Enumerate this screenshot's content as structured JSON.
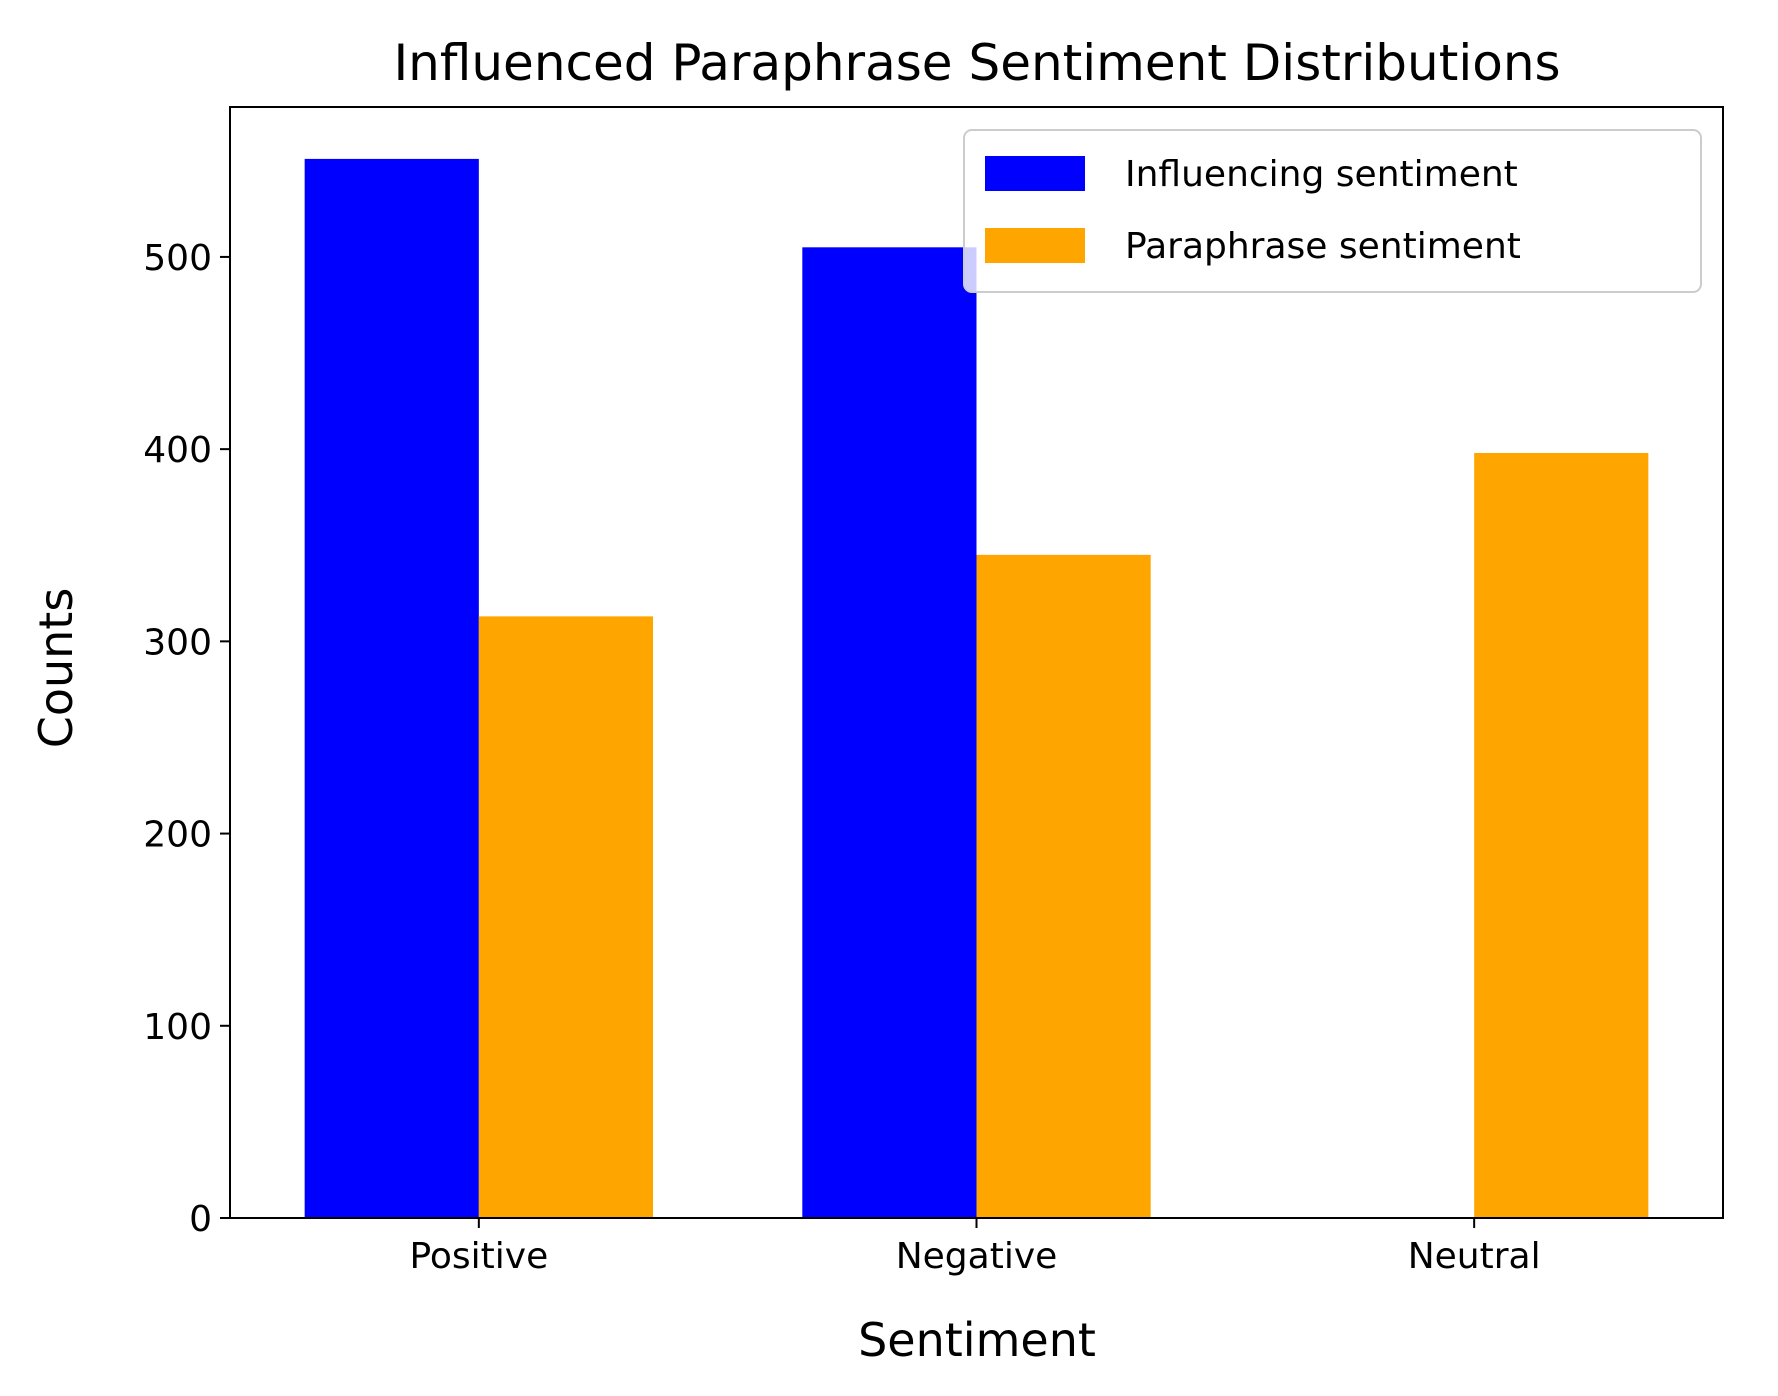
{
  "chart_data": {
    "type": "bar",
    "title": "Influenced Paraphrase Sentiment Distributions",
    "xlabel": "Sentiment",
    "ylabel": "Counts",
    "categories": [
      "Positive",
      "Negative",
      "Neutral"
    ],
    "series": [
      {
        "name": "Influencing sentiment",
        "color": "#0000ff",
        "values": [
          551,
          505,
          0
        ]
      },
      {
        "name": "Paraphrase sentiment",
        "color": "#ffa500",
        "values": [
          313,
          345,
          398
        ]
      }
    ],
    "ylim": [
      0,
      578
    ],
    "yticks": [
      0,
      100,
      200,
      300,
      400,
      500
    ],
    "grid": false,
    "legend_position": "top-right"
  }
}
